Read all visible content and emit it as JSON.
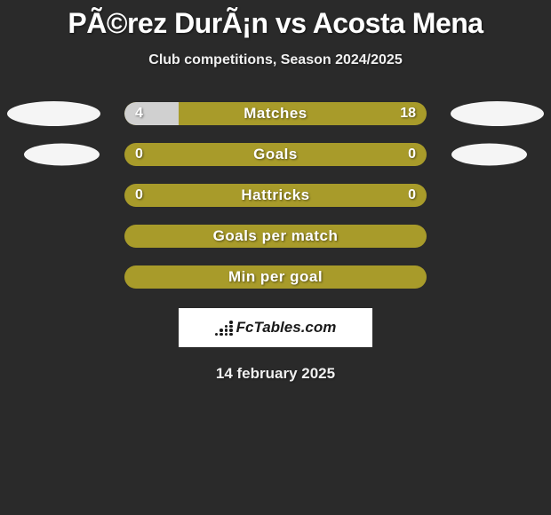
{
  "title": "PÃ©rez DurÃ¡n vs Acosta Mena",
  "subtitle": "Club competitions, Season 2024/2025",
  "background_color": "#2a2a2a",
  "bar_color": "#a89b2a",
  "fill_color": "#d0d0d0",
  "text_color": "#ffffff",
  "stats": [
    {
      "label": "Matches",
      "left_value": "4",
      "right_value": "18",
      "left_fill_pct": 18,
      "right_fill_pct": 0,
      "show_left_oval": true,
      "show_right_oval": true,
      "oval_size": "large"
    },
    {
      "label": "Goals",
      "left_value": "0",
      "right_value": "0",
      "left_fill_pct": 0,
      "right_fill_pct": 0,
      "show_left_oval": true,
      "show_right_oval": true,
      "oval_size": "small"
    },
    {
      "label": "Hattricks",
      "left_value": "0",
      "right_value": "0",
      "left_fill_pct": 0,
      "right_fill_pct": 0,
      "show_left_oval": false,
      "show_right_oval": false
    },
    {
      "label": "Goals per match",
      "left_value": "",
      "right_value": "",
      "left_fill_pct": 0,
      "right_fill_pct": 0,
      "show_left_oval": false,
      "show_right_oval": false
    },
    {
      "label": "Min per goal",
      "left_value": "",
      "right_value": "",
      "left_fill_pct": 0,
      "right_fill_pct": 0,
      "show_left_oval": false,
      "show_right_oval": false
    }
  ],
  "logo_text": "FcTables.com",
  "date": "14 february 2025"
}
